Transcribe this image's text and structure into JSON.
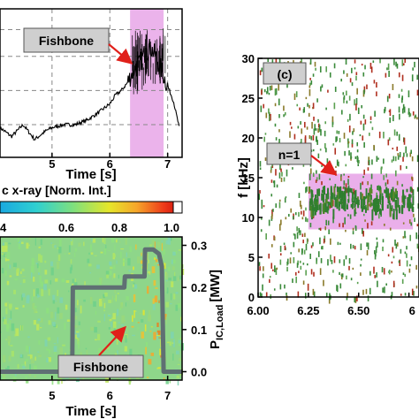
{
  "chart_data": [
    {
      "panel": "top-left",
      "type": "line",
      "xlabel": "Time [s]",
      "x_ticks": [
        "5",
        "6",
        "7"
      ],
      "xlim": [
        4.1,
        7.25
      ],
      "ylim": [
        0,
        1
      ],
      "grid": true,
      "shaded_region": {
        "x": [
          6.35,
          6.93
        ],
        "color": "#e8a6e8"
      },
      "series": [
        {
          "color": "#000000",
          "x": [
            4.1,
            4.3,
            4.5,
            4.7,
            4.9,
            5.0,
            5.2,
            5.4,
            5.6,
            5.8,
            6.0,
            6.1,
            6.2,
            6.3,
            6.4,
            6.5,
            6.6,
            6.7,
            6.8,
            6.9,
            7.0,
            7.1,
            7.2
          ],
          "values": [
            0.2,
            0.14,
            0.22,
            0.12,
            0.18,
            0.2,
            0.22,
            0.22,
            0.25,
            0.3,
            0.36,
            0.42,
            0.45,
            0.5,
            0.58,
            0.62,
            0.7,
            0.74,
            0.68,
            0.58,
            0.48,
            0.38,
            0.2
          ]
        }
      ],
      "annotation": {
        "text": "Fishbone",
        "arrow_to": [
          6.5,
          0.73
        ]
      }
    },
    {
      "panel": "bottom-left",
      "type": "heatmap",
      "colorbar_label": "c x-ray [Norm. Int.]",
      "colorbar_ticks": [
        "4",
        "0.6",
        "0.8",
        "1.0"
      ],
      "xlabel": "Time [s]",
      "x_ticks": [
        "5",
        "6",
        "7"
      ],
      "xlim": [
        4.1,
        7.25
      ],
      "ylabel_right": "P",
      "ylabel_right_sub": "IC,Load",
      "ylabel_right_unit": "[MW]",
      "yright_ticks": [
        "0.0",
        "0.1",
        "0.2",
        "0.3"
      ],
      "yright_lim": [
        -0.02,
        0.32
      ],
      "series": [
        {
          "color": "#5f6f73",
          "x": [
            4.1,
            5.35,
            5.36,
            6.25,
            6.26,
            6.6,
            6.61,
            6.75,
            6.85,
            6.9,
            6.93,
            6.96,
            7.25
          ],
          "values": [
            0.0,
            0.0,
            0.2,
            0.2,
            0.226,
            0.226,
            0.29,
            0.29,
            0.28,
            0.25,
            0.0,
            0.0,
            0.0
          ]
        }
      ],
      "annotation": {
        "text": "Fishbone",
        "arrow_to": [
          6.45,
          0.12
        ]
      }
    },
    {
      "panel": "right",
      "type": "scatter",
      "title": "(c)",
      "ylabel": "f [kHz]",
      "xlim": [
        6.0,
        6.8
      ],
      "ylim": [
        0,
        30
      ],
      "x_ticks": [
        "6.00",
        "6.25",
        "6.50",
        "6"
      ],
      "y_ticks": [
        "0",
        "5",
        "10",
        "15",
        "20",
        "25",
        "30"
      ],
      "shaded_region": {
        "x": [
          6.25,
          6.77
        ],
        "y": [
          8.5,
          15.5
        ],
        "color": "#e8a6e8"
      },
      "band": {
        "x": [
          6.25,
          6.77
        ],
        "y": [
          11,
          14
        ],
        "color": "#2f7f2f"
      },
      "annotation": {
        "text": "n=1",
        "arrow_to": [
          6.37,
          14.5
        ]
      }
    }
  ],
  "colors": {
    "shade": "#e8a6e8",
    "signal": "#000000",
    "ic_power": "#5f6f73",
    "spectrogram_green": "#3a8a3a",
    "spectrogram_olive": "#8a7a2a",
    "spectrogram_red": "#b03020",
    "arrow": "#e0201a",
    "callout_bg": "#cfcfcf"
  }
}
